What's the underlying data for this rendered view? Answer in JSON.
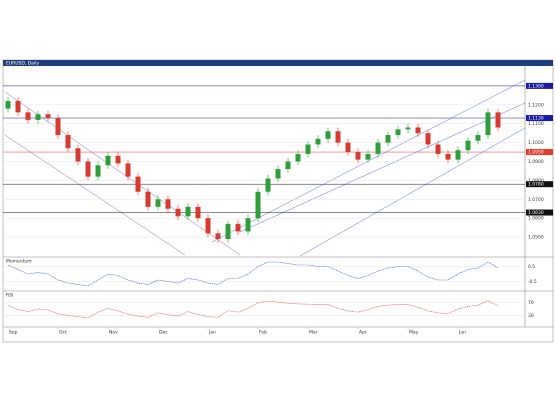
{
  "chart_data": [
    {
      "type": "candlestick",
      "title": "EURUSD, Daily",
      "categories": [
        "Sep",
        null,
        null,
        null,
        null,
        "Oct",
        null,
        null,
        null,
        null,
        "Nov",
        null,
        null,
        null,
        null,
        "Dec",
        null,
        null,
        null,
        null,
        "Jan",
        null,
        null,
        null,
        null,
        "Feb",
        null,
        null,
        null,
        null,
        "Mar",
        null,
        null,
        null,
        null,
        "Apr",
        null,
        null,
        null,
        null,
        "May",
        null,
        null,
        null,
        null,
        "Jun",
        null,
        null,
        null,
        null
      ],
      "open": [
        1.118,
        1.122,
        1.116,
        1.112,
        1.115,
        1.113,
        1.104,
        1.097,
        1.09,
        1.082,
        1.088,
        1.093,
        1.089,
        1.082,
        1.074,
        1.066,
        1.07,
        1.065,
        1.061,
        1.066,
        1.06,
        1.052,
        1.049,
        1.057,
        1.053,
        1.06,
        1.074,
        1.081,
        1.086,
        1.09,
        1.094,
        1.099,
        1.102,
        1.106,
        1.1,
        1.095,
        1.091,
        1.094,
        1.1,
        1.104,
        1.107,
        1.108,
        1.105,
        1.099,
        1.094,
        1.091,
        1.096,
        1.101,
        1.104,
        1.116
      ],
      "high": [
        1.124,
        1.124,
        1.118,
        1.117,
        1.117,
        1.115,
        1.106,
        1.099,
        1.092,
        1.09,
        1.095,
        1.095,
        1.091,
        1.084,
        1.076,
        1.072,
        1.072,
        1.067,
        1.068,
        1.068,
        1.062,
        1.054,
        1.059,
        1.059,
        1.062,
        1.076,
        1.083,
        1.088,
        1.092,
        1.096,
        1.101,
        1.104,
        1.108,
        1.108,
        1.102,
        1.097,
        1.096,
        1.102,
        1.106,
        1.109,
        1.11,
        1.11,
        1.107,
        1.101,
        1.096,
        1.098,
        1.103,
        1.106,
        1.118,
        1.118
      ],
      "low": [
        1.116,
        1.114,
        1.11,
        1.11,
        1.111,
        1.102,
        1.095,
        1.088,
        1.08,
        1.08,
        1.086,
        1.087,
        1.08,
        1.072,
        1.064,
        1.064,
        1.063,
        1.059,
        1.059,
        1.058,
        1.05,
        1.047,
        1.047,
        1.051,
        1.051,
        1.058,
        1.072,
        1.079,
        1.084,
        1.088,
        1.092,
        1.097,
        1.1,
        1.098,
        1.093,
        1.089,
        1.089,
        1.092,
        1.098,
        1.102,
        1.105,
        1.103,
        1.097,
        1.092,
        1.089,
        1.089,
        1.094,
        1.099,
        1.102,
        1.106
      ],
      "close": [
        1.122,
        1.116,
        1.112,
        1.115,
        1.113,
        1.104,
        1.097,
        1.09,
        1.082,
        1.088,
        1.093,
        1.089,
        1.082,
        1.074,
        1.066,
        1.07,
        1.065,
        1.061,
        1.066,
        1.06,
        1.052,
        1.049,
        1.057,
        1.053,
        1.06,
        1.074,
        1.081,
        1.086,
        1.09,
        1.094,
        1.099,
        1.102,
        1.106,
        1.1,
        1.095,
        1.091,
        1.094,
        1.1,
        1.104,
        1.107,
        1.108,
        1.105,
        1.099,
        1.094,
        1.091,
        1.096,
        1.101,
        1.104,
        1.116,
        1.108
      ],
      "up_color": "#2e9e3a",
      "down_color": "#d93a2f",
      "ylim": [
        1.04,
        1.14
      ],
      "yticks": [
        {
          "value": 1.05,
          "label": "1.0500"
        },
        {
          "value": 1.06,
          "label": "1.0600"
        },
        {
          "value": 1.07,
          "label": "1.0700"
        },
        {
          "value": 1.08,
          "label": "1.0800"
        },
        {
          "value": 1.09,
          "label": "1.0900"
        },
        {
          "value": 1.1,
          "label": "1.1000"
        },
        {
          "value": 1.11,
          "label": "1.1100"
        },
        {
          "value": 1.12,
          "label": "1.1200"
        },
        {
          "value": 1.13,
          "label": "1.1300"
        }
      ],
      "levels": [
        {
          "value": 1.13,
          "label": "1.1300",
          "color": "#1a1aa8"
        },
        {
          "value": 1.113,
          "label": "1.1130",
          "color": "#1a1aa8"
        },
        {
          "value": 1.095,
          "label": "1.0950",
          "color": "#e03a2a"
        },
        {
          "value": 1.078,
          "label": "1.0780",
          "color": "#111111"
        },
        {
          "value": 1.063,
          "label": "1.0630",
          "color": "#111111"
        }
      ]
    },
    {
      "type": "line",
      "title": "Momentum",
      "values": [
        0.6,
        0.3,
        0.0,
        0.1,
        0.0,
        -0.4,
        -0.6,
        -0.7,
        -0.8,
        -0.4,
        0.0,
        -0.1,
        -0.4,
        -0.6,
        -0.7,
        -0.4,
        -0.5,
        -0.6,
        -0.3,
        -0.4,
        -0.6,
        -0.7,
        -0.3,
        -0.3,
        0.0,
        0.5,
        0.8,
        0.8,
        0.7,
        0.6,
        0.6,
        0.5,
        0.5,
        0.2,
        -0.1,
        -0.3,
        -0.1,
        0.2,
        0.4,
        0.5,
        0.5,
        0.2,
        -0.2,
        -0.4,
        -0.4,
        0.0,
        0.3,
        0.4,
        0.8,
        0.4
      ],
      "color": "#3a5fcd",
      "ylim": [
        -1,
        1
      ],
      "yticks": [
        -0.5,
        0.5
      ]
    },
    {
      "type": "line",
      "title": "RSI",
      "values": [
        62,
        48,
        42,
        50,
        47,
        35,
        30,
        26,
        22,
        40,
        52,
        44,
        34,
        28,
        24,
        38,
        32,
        28,
        42,
        33,
        26,
        24,
        45,
        40,
        52,
        70,
        74,
        72,
        68,
        66,
        65,
        64,
        64,
        52,
        44,
        40,
        48,
        58,
        62,
        64,
        64,
        55,
        44,
        38,
        35,
        50,
        58,
        62,
        76,
        60
      ],
      "color": "#e05050",
      "ylim": [
        0,
        100
      ],
      "yticks": [
        30,
        70
      ]
    }
  ]
}
